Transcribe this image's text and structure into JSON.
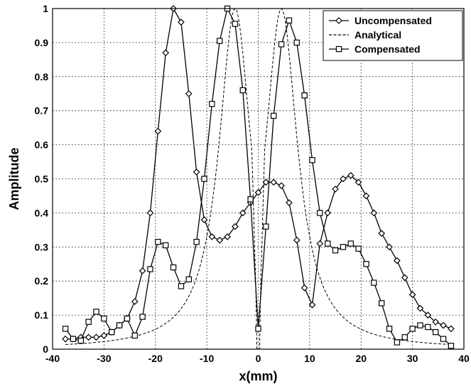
{
  "chart_data": {
    "type": "line",
    "xlabel": "x(mm)",
    "ylabel": "Amplitude",
    "xlim": [
      -40,
      40
    ],
    "ylim": [
      0,
      1
    ],
    "xticks": [
      -40,
      -30,
      -20,
      -10,
      0,
      10,
      20,
      30,
      40
    ],
    "yticks": [
      0,
      0.1,
      0.2,
      0.3,
      0.4,
      0.5,
      0.6,
      0.7,
      0.8,
      0.9,
      1
    ],
    "ytick_labels": [
      "0",
      "0.1",
      "0.2",
      "0.3",
      "0.4",
      "0.5",
      "0.6",
      "0.7",
      "0.8",
      "0.9",
      "1"
    ],
    "grid": true,
    "grid_style": "dotted",
    "legend_position": "top-right",
    "series": [
      {
        "name": "Uncompensated",
        "marker": "diamond",
        "line": "solid",
        "color": "#000000",
        "x": [
          -37.5,
          -36,
          -34.5,
          -33,
          -31.5,
          -30,
          -28.5,
          -27,
          -25.5,
          -24,
          -22.5,
          -21,
          -19.5,
          -18,
          -16.5,
          -15,
          -13.5,
          -12,
          -10.5,
          -9,
          -7.5,
          -6,
          -4.5,
          -3,
          -1.5,
          0,
          1.5,
          3,
          4.5,
          6,
          7.5,
          9,
          10.5,
          12,
          13.5,
          15,
          16.5,
          18,
          19.5,
          21,
          22.5,
          24,
          25.5,
          27,
          28.5,
          30,
          31.5,
          33,
          34.5,
          36,
          37.5
        ],
        "y": [
          0.03,
          0.03,
          0.035,
          0.035,
          0.035,
          0.04,
          0.05,
          0.07,
          0.09,
          0.14,
          0.23,
          0.4,
          0.64,
          0.87,
          1.0,
          0.96,
          0.75,
          0.52,
          0.38,
          0.33,
          0.32,
          0.33,
          0.36,
          0.4,
          0.43,
          0.46,
          0.49,
          0.49,
          0.48,
          0.43,
          0.32,
          0.18,
          0.13,
          0.31,
          0.4,
          0.47,
          0.5,
          0.51,
          0.49,
          0.45,
          0.4,
          0.34,
          0.3,
          0.26,
          0.21,
          0.16,
          0.12,
          0.1,
          0.08,
          0.07,
          0.06
        ]
      },
      {
        "name": "Analytical",
        "marker": "none",
        "line": "dashed",
        "color": "#000000",
        "peak": 1,
        "peak_x": 4.5,
        "width": 8.5
      },
      {
        "name": "Compensated",
        "marker": "square",
        "line": "solid",
        "color": "#000000",
        "x": [
          -37.5,
          -36,
          -34.5,
          -33,
          -31.5,
          -30,
          -28.5,
          -27,
          -25.5,
          -24,
          -22.5,
          -21,
          -19.5,
          -18,
          -16.5,
          -15,
          -13.5,
          -12,
          -10.5,
          -9,
          -7.5,
          -6,
          -4.5,
          -3,
          -1.5,
          0,
          1.5,
          3,
          4.5,
          6,
          7.5,
          9,
          10.5,
          12,
          13.5,
          15,
          16.5,
          18,
          19.5,
          21,
          22.5,
          24,
          25.5,
          27,
          28.5,
          30,
          31.5,
          33,
          34.5,
          36,
          37.5
        ],
        "y": [
          0.06,
          0.03,
          0.025,
          0.08,
          0.11,
          0.09,
          0.05,
          0.07,
          0.09,
          0.04,
          0.095,
          0.235,
          0.315,
          0.305,
          0.24,
          0.185,
          0.205,
          0.315,
          0.5,
          0.72,
          0.905,
          1.0,
          0.955,
          0.76,
          0.44,
          0.06,
          0.36,
          0.685,
          0.895,
          0.965,
          0.9,
          0.745,
          0.555,
          0.4,
          0.31,
          0.29,
          0.3,
          0.31,
          0.295,
          0.25,
          0.195,
          0.135,
          0.06,
          0.02,
          0.035,
          0.06,
          0.07,
          0.065,
          0.05,
          0.03,
          0.01
        ]
      }
    ]
  }
}
